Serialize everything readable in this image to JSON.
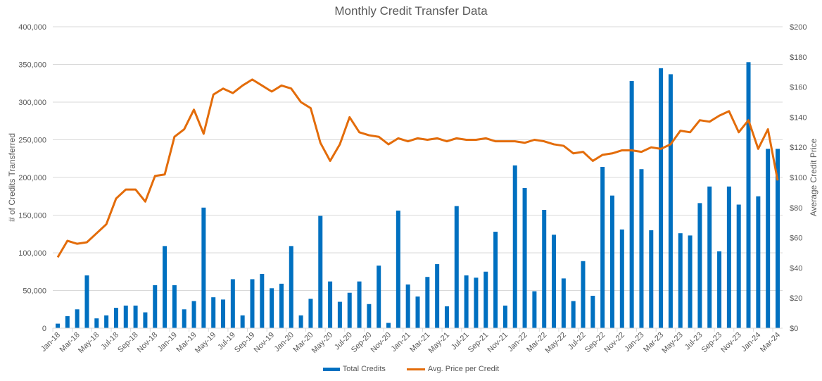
{
  "chart_data": {
    "type": "bar",
    "title": "Monthly Credit Transfer Data",
    "xlabel": "",
    "ylabel": "# of Credits Transferred",
    "y2label": "Average Credit Price",
    "ylim": [
      0,
      400000
    ],
    "y2lim": [
      0,
      200
    ],
    "yticks": [
      "0",
      "50,000",
      "100,000",
      "150,000",
      "200,000",
      "250,000",
      "300,000",
      "350,000",
      "400,000"
    ],
    "y2ticks": [
      "$0",
      "$20",
      "$40",
      "$60",
      "$80",
      "$100",
      "$120",
      "$140",
      "$160",
      "$180",
      "$200"
    ],
    "grid": true,
    "legend_position": "bottom",
    "categories": [
      "Jan-18",
      "Feb-18",
      "Mar-18",
      "Apr-18",
      "May-18",
      "Jun-18",
      "Jul-18",
      "Aug-18",
      "Sep-18",
      "Oct-18",
      "Nov-18",
      "Dec-18",
      "Jan-19",
      "Feb-19",
      "Mar-19",
      "Apr-19",
      "May-19",
      "Jun-19",
      "Jul-19",
      "Aug-19",
      "Sep-19",
      "Oct-19",
      "Nov-19",
      "Dec-19",
      "Jan-20",
      "Feb-20",
      "Mar-20",
      "Apr-20",
      "May-20",
      "Jun-20",
      "Jul-20",
      "Aug-20",
      "Sep-20",
      "Oct-20",
      "Nov-20",
      "Dec-20",
      "Jan-21",
      "Feb-21",
      "Mar-21",
      "Apr-21",
      "May-21",
      "Jun-21",
      "Jul-21",
      "Aug-21",
      "Sep-21",
      "Oct-21",
      "Nov-21",
      "Dec-21",
      "Jan-22",
      "Feb-22",
      "Mar-22",
      "Apr-22",
      "May-22",
      "Jun-22",
      "Jul-22",
      "Aug-22",
      "Sep-22",
      "Oct-22",
      "Nov-22",
      "Dec-22",
      "Jan-23",
      "Feb-23",
      "Mar-23",
      "Apr-23",
      "May-23",
      "Jun-23",
      "Jul-23",
      "Aug-23",
      "Sep-23",
      "Oct-23",
      "Nov-23",
      "Dec-23",
      "Jan-24",
      "Feb-24",
      "Mar-24"
    ],
    "series": [
      {
        "name": "Total Credits",
        "type": "bar",
        "axis": "left",
        "color": "#0070c0",
        "values": [
          6000,
          16000,
          25000,
          70000,
          13000,
          17000,
          27000,
          30000,
          30000,
          21000,
          57000,
          109000,
          57000,
          25000,
          36000,
          160000,
          41000,
          38000,
          65000,
          17000,
          65000,
          72000,
          53000,
          59000,
          109000,
          17000,
          39000,
          149000,
          62000,
          35000,
          47000,
          62000,
          32000,
          83000,
          7000,
          156000,
          58000,
          42000,
          68000,
          85000,
          29000,
          162000,
          70000,
          67000,
          75000,
          128000,
          30000,
          216000,
          186000,
          49000,
          157000,
          124000,
          66000,
          36000,
          89000,
          43000,
          214000,
          176000,
          131000,
          328000,
          211000,
          130000,
          345000,
          337000,
          126000,
          123000,
          166000,
          188000,
          102000,
          188000,
          164000,
          353000,
          175000,
          238000,
          238000
        ]
      },
      {
        "name": "Avg. Price per Credit",
        "type": "line",
        "axis": "right",
        "color": "#e36c0a",
        "values": [
          47,
          58,
          56,
          57,
          63,
          69,
          86,
          92,
          92,
          84,
          101,
          102,
          127,
          132,
          145,
          129,
          155,
          159,
          156,
          161,
          165,
          161,
          157,
          161,
          159,
          150,
          146,
          123,
          111,
          122,
          140,
          130,
          128,
          127,
          122,
          126,
          124,
          126,
          125,
          126,
          124,
          126,
          125,
          125,
          126,
          124,
          124,
          124,
          123,
          125,
          124,
          122,
          121,
          116,
          117,
          111,
          115,
          116,
          118,
          118,
          117,
          120,
          119,
          122,
          131,
          130,
          138,
          137,
          141,
          144,
          130,
          138,
          119,
          132,
          98
        ]
      }
    ],
    "xtick_labels": [
      "Jan-18",
      "Mar-18",
      "May-18",
      "Jul-18",
      "Sep-18",
      "Nov-18",
      "Jan-19",
      "Mar-19",
      "May-19",
      "Jul-19",
      "Sep-19",
      "Nov-19",
      "Jan-20",
      "Mar-20",
      "May-20",
      "Jul-20",
      "Sep-20",
      "Nov-20",
      "Jan-21",
      "Mar-21",
      "May-21",
      "Jul-21",
      "Sep-21",
      "Nov-21",
      "Jan-22",
      "Mar-22",
      "May-22",
      "Jul-22",
      "Sep-22",
      "Nov-22",
      "Jan-23",
      "Mar-23",
      "May-23",
      "Jul-23",
      "Sep-23",
      "Nov-23",
      "Jan-24",
      "Mar-24"
    ]
  },
  "legend": {
    "bar_label": "Total Credits",
    "line_label": "Avg. Price per Credit"
  }
}
